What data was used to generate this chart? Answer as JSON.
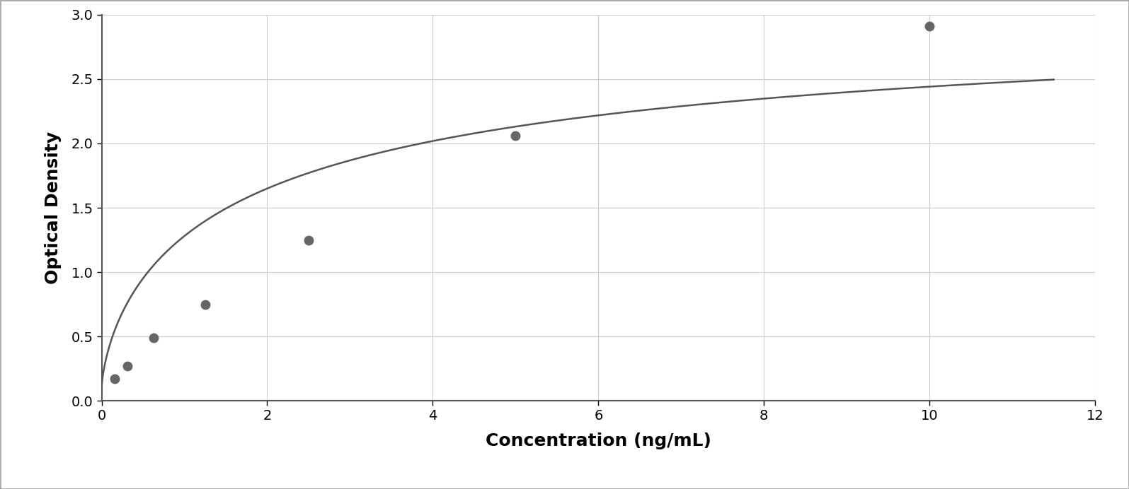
{
  "x_data": [
    0.156,
    0.313,
    0.625,
    1.25,
    2.5,
    5.0,
    10.0
  ],
  "y_data": [
    0.175,
    0.27,
    0.49,
    0.75,
    1.25,
    2.06,
    2.91
  ],
  "xlabel": "Concentration (ng/mL)",
  "ylabel": "Optical Density",
  "xlim": [
    0,
    12
  ],
  "ylim": [
    0,
    3
  ],
  "xticks": [
    0,
    2,
    4,
    6,
    8,
    10,
    12
  ],
  "yticks": [
    0,
    0.5,
    1.0,
    1.5,
    2.0,
    2.5,
    3.0
  ],
  "marker_color": "#666666",
  "line_color": "#555555",
  "bg_color": "#ffffff",
  "plot_bg_color": "#ffffff",
  "grid_color": "#cccccc",
  "marker_size": 9,
  "line_width": 1.8,
  "xlabel_fontsize": 18,
  "ylabel_fontsize": 18,
  "tick_fontsize": 14,
  "xlabel_fontweight": "bold",
  "ylabel_fontweight": "bold",
  "border_color": "#555555",
  "outer_border_color": "#aaaaaa",
  "outer_border_lw": 1.5
}
